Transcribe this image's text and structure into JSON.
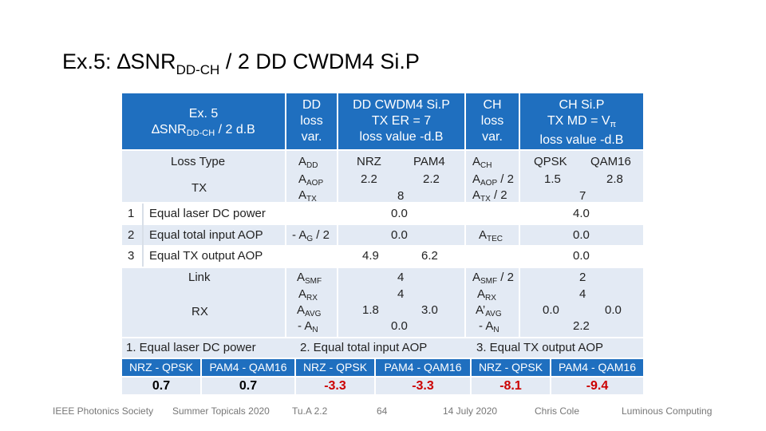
{
  "title": {
    "prefix": "Ex.5: ∆SNR",
    "sub": "DD-CH",
    "suffix": " / 2   DD CWDM4 Si.P"
  },
  "header": {
    "ex_line1": "Ex. 5",
    "ex_line2_pre": "∆SNR",
    "ex_line2_sub": "DD-CH",
    "ex_line2_post": " / 2  d.B",
    "col_dd_loss": [
      "DD",
      "loss",
      "var."
    ],
    "col_dd_cwdm4": [
      "DD CWDM4 Si.P",
      "TX ER = 7",
      "loss value -d.B"
    ],
    "col_ch_loss": [
      "CH",
      "loss",
      "var."
    ],
    "col_ch_sip": [
      "CH Si.P",
      "TX MD = V",
      "loss value -d.B"
    ],
    "col_ch_sip_sub": "π"
  },
  "rows": {
    "loss_type": "Loss Type",
    "tx": "TX",
    "link": "Link",
    "rx": "RX",
    "tx_items": [
      {
        "num": "1",
        "label": "Equal laser DC power"
      },
      {
        "num": "2",
        "label": "Equal total input AOP"
      },
      {
        "num": "3",
        "label": "Equal TX output AOP"
      }
    ]
  },
  "cells": {
    "a": "A",
    "dd": "DD",
    "aop": "AOP",
    "tx": "TX",
    "ch": "CH",
    "smf": "SMF",
    "rx": "RX",
    "avg": "AVG",
    "n": "N",
    "g": "G",
    "tec": "TEC",
    "nrz": "NRZ",
    "pam4": "PAM4",
    "qpsk": "QPSK",
    "qam16": "QAM16",
    "v_2_2a": "2.2",
    "v_2_2b": "2.2",
    "v_1_5": "1.5",
    "v_2_8": "2.8",
    "v_8": "8",
    "v_7": "7",
    "v_0_0": "0.0",
    "v_4_0": "4.0",
    "v_4_9": "4.9",
    "v_6_2": "6.2",
    "v_4": "4",
    "v_2": "2",
    "v_1_8": "1.8",
    "v_3_0": "3.0",
    "v_2_2c": "2.2",
    "minus": "- ",
    "div2": " / 2",
    "prime": "’"
  },
  "summary": {
    "labels": [
      "1. Equal laser DC power",
      "2. Equal total input AOP",
      "3. Equal TX output AOP"
    ],
    "categories": [
      "NRZ - QPSK",
      "PAM4 - QAM16",
      "NRZ - QPSK",
      "PAM4 - QAM16",
      "NRZ - QPSK",
      "PAM4 - QAM16"
    ],
    "values": [
      "0.7",
      "0.7",
      "-3.3",
      "-3.3",
      "-8.1",
      "-9.4"
    ],
    "colors": {
      "neutral": "#000000",
      "negative": "#cc0000"
    }
  },
  "footer": [
    "IEEE Photonics Society",
    "Summer Topicals 2020",
    "Tu.A 2.2",
    "64",
    "14 July 2020",
    "Chris Cole",
    "Luminous Computing"
  ]
}
